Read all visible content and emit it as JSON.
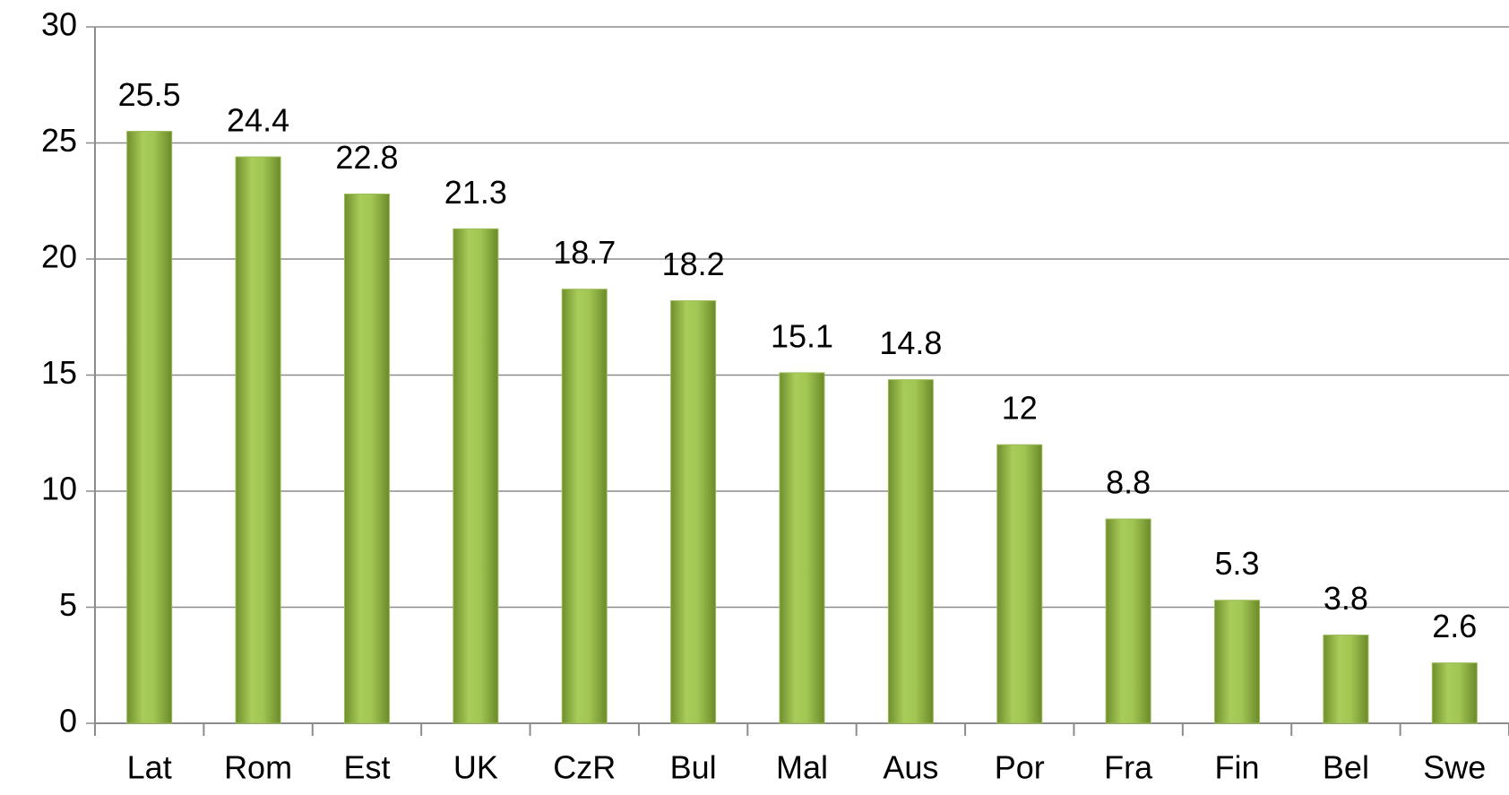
{
  "chart_data": {
    "type": "bar",
    "categories": [
      "Lat",
      "Rom",
      "Est",
      "UK",
      "CzR",
      "Bul",
      "Mal",
      "Aus",
      "Por",
      "Fra",
      "Fin",
      "Bel",
      "Swe"
    ],
    "values": [
      25.5,
      24.4,
      22.8,
      21.3,
      18.7,
      18.2,
      15.1,
      14.8,
      12,
      8.8,
      5.3,
      3.8,
      2.6
    ],
    "color": "#9bbb59",
    "ylim": [
      0,
      30
    ],
    "yticks": [
      0,
      5,
      10,
      15,
      20,
      25,
      30
    ],
    "grid": true
  }
}
